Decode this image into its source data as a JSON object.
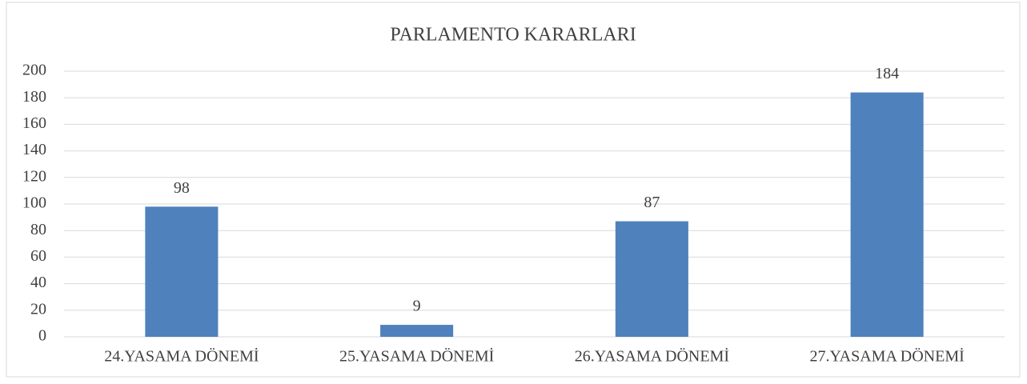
{
  "chart_data": {
    "type": "bar",
    "title": "PARLAMENTO KARARLARI",
    "categories": [
      "24.YASAMA DÖNEMİ",
      "25.YASAMA DÖNEMİ",
      "26.YASAMA DÖNEMİ",
      "27.YASAMA DÖNEMİ"
    ],
    "values": [
      98,
      9,
      87,
      184
    ],
    "color": "#4f81bd",
    "ylim": [
      0,
      200
    ],
    "yticks": [
      0,
      20,
      40,
      60,
      80,
      100,
      120,
      140,
      160,
      180,
      200
    ],
    "grid": true
  }
}
